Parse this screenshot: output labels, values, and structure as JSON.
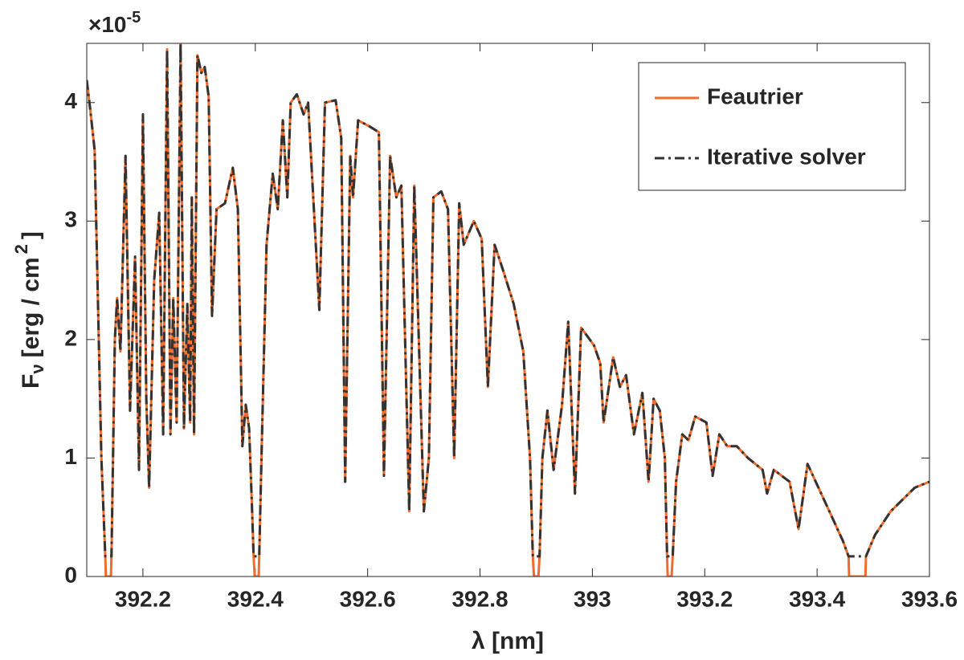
{
  "chart_data": {
    "type": "line",
    "y_multiplier": {
      "base": "×10",
      "exponent": "-5"
    },
    "xlabel": "λ [nm]",
    "ylabel": {
      "main": "F",
      "sub": "ν",
      "unit": "[erg / cm",
      "sup": "2",
      "end": "]"
    },
    "xlim": [
      392.1,
      393.6
    ],
    "ylim": [
      0,
      4.5
    ],
    "xticks": [
      392.2,
      392.4,
      392.6,
      392.8,
      393,
      393.2,
      393.4,
      393.6
    ],
    "yticks": [
      0,
      1,
      2,
      3,
      4
    ],
    "legend": "upper right",
    "x": [
      392.1,
      392.106,
      392.114,
      392.12,
      392.126,
      392.133,
      392.134,
      392.143,
      392.144,
      392.15,
      392.154,
      392.16,
      392.169,
      392.177,
      392.186,
      392.193,
      392.2,
      392.206,
      392.211,
      392.22,
      392.229,
      392.236,
      392.243,
      392.249,
      392.254,
      392.26,
      392.267,
      392.273,
      392.279,
      392.284,
      392.287,
      392.291,
      392.297,
      392.304,
      392.31,
      392.317,
      392.323,
      392.331,
      392.346,
      392.36,
      392.369,
      392.377,
      392.383,
      392.389,
      392.394,
      392.397,
      392.399,
      392.406,
      392.407,
      392.411,
      392.42,
      392.431,
      392.44,
      392.449,
      392.457,
      392.463,
      392.474,
      392.486,
      392.494,
      392.514,
      392.524,
      392.543,
      392.553,
      392.56,
      392.569,
      392.574,
      392.583,
      392.603,
      392.62,
      392.629,
      392.64,
      392.651,
      392.66,
      392.674,
      392.683,
      392.7,
      392.709,
      392.717,
      392.731,
      392.743,
      392.754,
      392.763,
      392.771,
      392.789,
      392.803,
      392.814,
      392.826,
      392.84,
      392.86,
      392.877,
      392.889,
      392.894,
      392.896,
      392.904,
      392.906,
      392.911,
      392.92,
      392.931,
      392.946,
      392.957,
      392.969,
      392.98,
      393.003,
      393.014,
      393.02,
      393.037,
      393.049,
      393.06,
      393.074,
      393.089,
      393.1,
      393.109,
      393.12,
      393.129,
      393.133,
      393.134,
      393.141,
      393.143,
      393.149,
      393.16,
      393.171,
      393.183,
      393.203,
      393.214,
      393.226,
      393.24,
      393.257,
      393.277,
      393.303,
      393.311,
      393.323,
      393.351,
      393.367,
      393.383,
      393.417,
      393.446,
      393.456,
      393.457,
      393.486,
      393.487,
      393.503,
      393.531,
      393.574,
      393.6
    ],
    "series": [
      {
        "name": "Feautrier",
        "color": "#f26b2a",
        "style": "solid",
        "values": [
          4.19,
          3.95,
          3.6,
          2.3,
          1.0,
          0.17,
          0,
          0,
          0.17,
          2.0,
          2.35,
          1.9,
          3.55,
          1.4,
          2.7,
          0.9,
          3.9,
          1.5,
          0.75,
          2.5,
          3.07,
          1.2,
          4.45,
          1.2,
          2.35,
          1.3,
          4.5,
          1.25,
          2.3,
          1.3,
          3.2,
          1.2,
          4.4,
          4.25,
          4.3,
          4.05,
          2.2,
          3.1,
          3.15,
          3.45,
          3.1,
          1.1,
          1.45,
          1.25,
          0.6,
          0.17,
          0,
          0,
          0.17,
          1.0,
          2.8,
          3.4,
          3.1,
          3.85,
          3.2,
          4.0,
          4.07,
          3.9,
          4.0,
          2.25,
          4.0,
          4.02,
          3.7,
          0.8,
          3.55,
          3.2,
          3.85,
          3.8,
          3.75,
          0.85,
          3.55,
          3.2,
          3.3,
          0.55,
          3.3,
          0.55,
          1.0,
          3.2,
          3.25,
          3.1,
          1.0,
          3.15,
          2.8,
          3.0,
          2.85,
          1.6,
          2.8,
          2.6,
          2.3,
          1.9,
          1.0,
          0.17,
          0,
          0,
          0.17,
          1.0,
          1.4,
          0.9,
          1.45,
          2.15,
          0.7,
          2.1,
          1.95,
          1.8,
          1.3,
          1.85,
          1.6,
          1.7,
          1.2,
          1.55,
          0.8,
          1.5,
          1.4,
          1.0,
          0.17,
          0,
          0,
          0.17,
          0.8,
          1.2,
          1.15,
          1.35,
          1.3,
          0.85,
          1.2,
          1.1,
          1.1,
          1.0,
          0.9,
          0.7,
          0.9,
          0.8,
          0.4,
          0.95,
          0.6,
          0.3,
          0.17,
          0,
          0,
          0.17,
          0.35,
          0.55,
          0.75,
          0.8
        ]
      },
      {
        "name": "Iterative solver",
        "color": "#333333",
        "style": "dashdot",
        "values": [
          4.19,
          3.95,
          3.6,
          2.3,
          1.0,
          0.17,
          0.17,
          0.17,
          0.17,
          2.0,
          2.35,
          1.9,
          3.55,
          1.4,
          2.7,
          0.9,
          3.9,
          1.5,
          0.75,
          2.5,
          3.07,
          1.2,
          4.45,
          1.2,
          2.35,
          1.3,
          4.5,
          1.25,
          2.3,
          1.3,
          3.2,
          1.2,
          4.4,
          4.25,
          4.3,
          4.05,
          2.2,
          3.1,
          3.15,
          3.45,
          3.1,
          1.1,
          1.45,
          1.25,
          0.6,
          0.17,
          0.17,
          0.17,
          0.17,
          1.0,
          2.8,
          3.4,
          3.1,
          3.85,
          3.2,
          4.0,
          4.07,
          3.9,
          4.0,
          2.25,
          4.0,
          4.02,
          3.7,
          0.8,
          3.55,
          3.2,
          3.85,
          3.8,
          3.75,
          0.85,
          3.55,
          3.2,
          3.3,
          0.55,
          3.3,
          0.55,
          1.0,
          3.2,
          3.25,
          3.1,
          1.0,
          3.15,
          2.8,
          3.0,
          2.85,
          1.6,
          2.8,
          2.6,
          2.3,
          1.9,
          1.0,
          0.17,
          0.17,
          0.17,
          0.17,
          1.0,
          1.4,
          0.9,
          1.45,
          2.15,
          0.7,
          2.1,
          1.95,
          1.8,
          1.3,
          1.85,
          1.6,
          1.7,
          1.2,
          1.55,
          0.8,
          1.5,
          1.4,
          1.0,
          0.17,
          0.17,
          0.17,
          0.17,
          0.8,
          1.2,
          1.15,
          1.35,
          1.3,
          0.85,
          1.2,
          1.1,
          1.1,
          1.0,
          0.9,
          0.7,
          0.9,
          0.8,
          0.4,
          0.95,
          0.6,
          0.3,
          0.17,
          0.17,
          0.17,
          0.17,
          0.35,
          0.55,
          0.75,
          0.8
        ]
      }
    ]
  }
}
